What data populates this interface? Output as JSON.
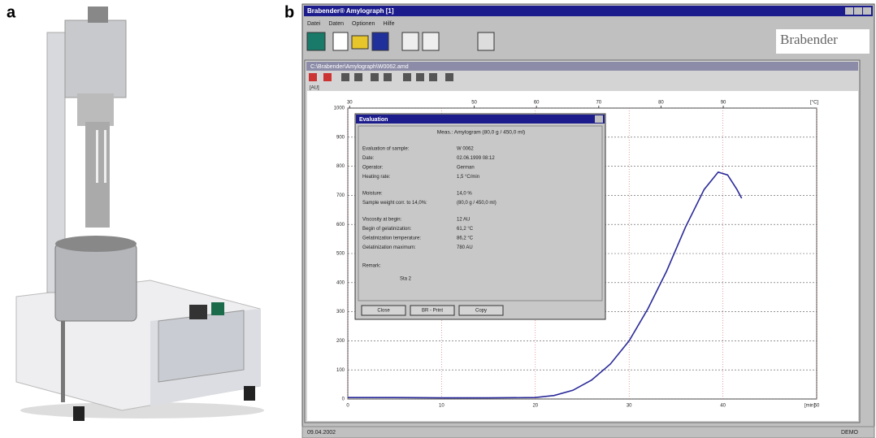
{
  "panel_labels": [
    "a",
    "b"
  ],
  "window": {
    "title": "Brabender® Amylograph [1]",
    "menu": [
      "Datei",
      "Daten",
      "Optionen",
      "Hilfe"
    ],
    "logo": "Brabender",
    "status": "09.04.2002",
    "status_right": "DEMO"
  },
  "document": {
    "title": "C:\\Brabender\\Amylograph\\W0062.amd"
  },
  "plot": {
    "ylabel": "[AU]",
    "xlabel": "[min]",
    "top_label": "[°C]",
    "xlim": [
      0,
      50
    ],
    "xticks": [
      0,
      10,
      20,
      30,
      40,
      50
    ],
    "ylim": [
      0,
      1000
    ],
    "yticks": [
      0,
      100,
      200,
      300,
      400,
      500,
      600,
      700,
      800,
      900,
      1000
    ],
    "top_xlim": [
      29.7,
      105
    ],
    "top_xticks": [
      30,
      50,
      60,
      70,
      80,
      90
    ],
    "x": [
      0,
      5,
      10,
      15,
      20,
      22,
      24,
      26,
      28,
      30,
      32,
      34,
      36,
      38,
      39.5,
      40.5,
      41.5,
      42
    ],
    "values": [
      5,
      5,
      4,
      4,
      5,
      12,
      30,
      65,
      120,
      200,
      310,
      440,
      590,
      720,
      780,
      770,
      720,
      690
    ],
    "color": "#2a2a9a"
  },
  "dialog": {
    "title": "Evaluation",
    "header": "Meas.: Amylogram   (80,0 g / 450,0 ml)",
    "rows": [
      [
        "Evaluation of sample:",
        "W 0062"
      ],
      [
        "Date:",
        "02.06.1999 08:12"
      ],
      [
        "Operator:",
        "German"
      ],
      [
        "Heating rate:",
        "1,5 °C/min"
      ],
      [
        "Moisture:",
        "14,0 %"
      ],
      [
        "Sample weight corr. to 14,0%:",
        "(80,0 g / 450,0 ml)"
      ],
      [
        "Viscosity at begin:",
        "12 AU"
      ],
      [
        "Begin of gelatinization:",
        "61,2 °C"
      ],
      [
        "Gelatinization temperature:",
        "86,2 °C"
      ],
      [
        "Gelatinization maximum:",
        "780 AU"
      ]
    ],
    "remark_label": "Remark:",
    "remark": "Sta 2",
    "buttons": [
      "Close",
      "BR - Print",
      "Copy"
    ]
  }
}
